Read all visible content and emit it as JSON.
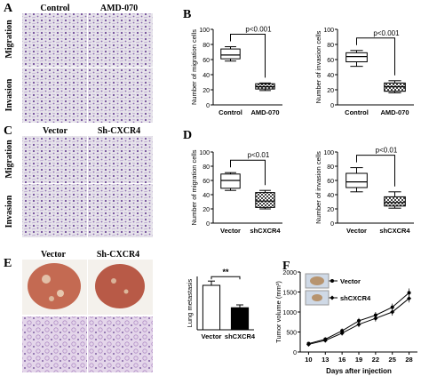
{
  "panels": {
    "A": {
      "letter": "A",
      "columns": [
        "Control",
        "AMD-070"
      ],
      "rows": [
        "Migration",
        "Invasion"
      ]
    },
    "C": {
      "letter": "C",
      "columns": [
        "Vector",
        "Sh-CXCR4"
      ],
      "rows": [
        "Migration",
        "Invasion"
      ]
    },
    "E": {
      "letter": "E",
      "columns": [
        "Vector",
        "Sh-CXCR4"
      ]
    },
    "B": {
      "letter": "B"
    },
    "D": {
      "letter": "D"
    },
    "F": {
      "letter": "F"
    }
  },
  "chart_data": [
    {
      "id": "B-migration",
      "type": "box",
      "ylabel": "Number of migration cells",
      "ylim": [
        0,
        100
      ],
      "yticks": [
        0,
        20,
        40,
        60,
        80,
        100
      ],
      "categories": [
        "Control",
        "AMD-070"
      ],
      "boxes": [
        {
          "min": 58,
          "q1": 61,
          "median": 66,
          "q3": 74,
          "max": 77,
          "fill": "white"
        },
        {
          "min": 19,
          "q1": 21,
          "median": 24,
          "q3": 28,
          "max": 29,
          "fill": "pattern"
        }
      ],
      "significance": "p<0.001"
    },
    {
      "id": "B-invasion",
      "type": "box",
      "ylabel": "Number of invasion cells",
      "ylim": [
        0,
        100
      ],
      "yticks": [
        0,
        20,
        40,
        60,
        80,
        100
      ],
      "categories": [
        "Control",
        "AMD-070"
      ],
      "boxes": [
        {
          "min": 51,
          "q1": 57,
          "median": 64,
          "q3": 69,
          "max": 72,
          "fill": "white"
        },
        {
          "min": 16,
          "q1": 18,
          "median": 24,
          "q3": 29,
          "max": 32,
          "fill": "pattern"
        }
      ],
      "significance": "p<0.001"
    },
    {
      "id": "D-migration",
      "type": "box",
      "ylabel": "Number of migration cells",
      "ylim": [
        0,
        100
      ],
      "yticks": [
        0,
        20,
        40,
        60,
        80,
        100
      ],
      "categories": [
        "Vector",
        "shCXCR4"
      ],
      "boxes": [
        {
          "min": 46,
          "q1": 49,
          "median": 60,
          "q3": 69,
          "max": 71,
          "fill": "white"
        },
        {
          "min": 20,
          "q1": 22,
          "median": 31,
          "q3": 43,
          "max": 46,
          "fill": "pattern"
        }
      ],
      "significance": "p<0.01"
    },
    {
      "id": "D-invasion",
      "type": "box",
      "ylabel": "Number of invasion cells",
      "ylim": [
        0,
        100
      ],
      "yticks": [
        0,
        20,
        40,
        60,
        80,
        100
      ],
      "categories": [
        "Vector",
        "shCXCR4"
      ],
      "boxes": [
        {
          "min": 44,
          "q1": 50,
          "median": 58,
          "q3": 70,
          "max": 78,
          "fill": "white"
        },
        {
          "min": 21,
          "q1": 24,
          "median": 29,
          "q3": 37,
          "max": 44,
          "fill": "pattern"
        }
      ],
      "significance": "p<0.01"
    },
    {
      "id": "E-lung",
      "type": "bar",
      "ylabel": "Lung metastasis",
      "ylim": [
        0,
        15
      ],
      "categories": [
        "Vector",
        "shCXCR4"
      ],
      "values": [
        12.5,
        6.2
      ],
      "errors": [
        1.2,
        0.8
      ],
      "colors": [
        "#ffffff",
        "#000000"
      ],
      "significance": "**"
    },
    {
      "id": "F-tumor",
      "type": "line",
      "ylabel": "Tumor volume (mm³)",
      "xlabel": "Days after injection",
      "ylim": [
        0,
        2000
      ],
      "yticks": [
        0,
        500,
        1000,
        1500,
        2000
      ],
      "x": [
        10,
        13,
        16,
        19,
        22,
        25,
        28
      ],
      "series": [
        {
          "name": "Vector",
          "marker": "circle",
          "values": [
            210,
            320,
            530,
            780,
            920,
            1120,
            1480
          ],
          "errors": [
            40,
            50,
            60,
            70,
            80,
            90,
            110
          ]
        },
        {
          "name": "shCXCR4",
          "marker": "diamond",
          "values": [
            190,
            290,
            470,
            690,
            840,
            1000,
            1340
          ],
          "errors": [
            40,
            50,
            60,
            70,
            80,
            90,
            100
          ]
        }
      ]
    }
  ]
}
